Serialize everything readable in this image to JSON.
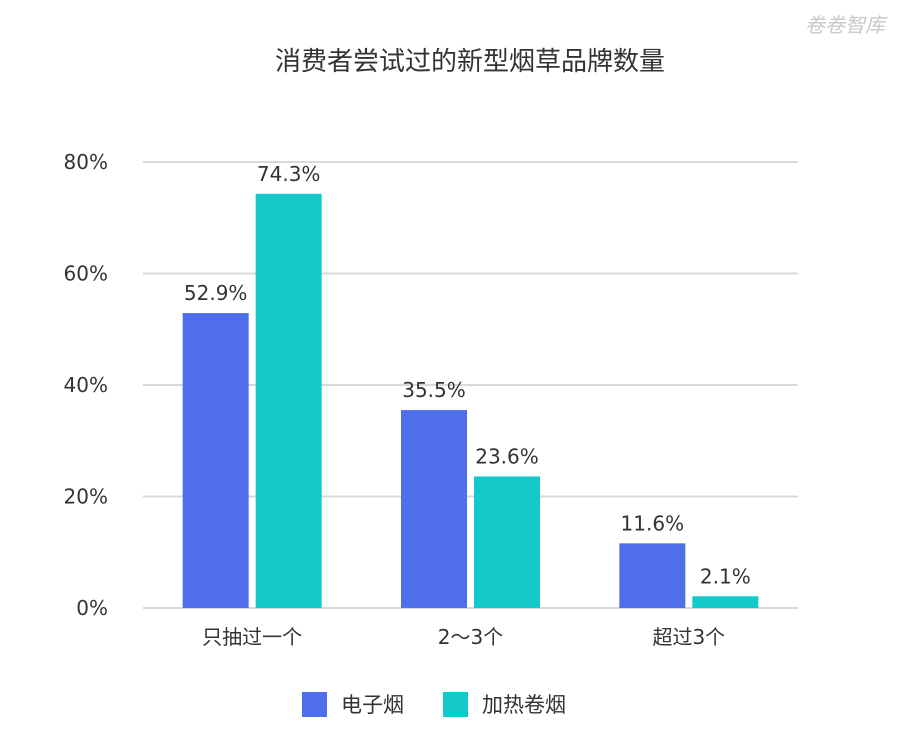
{
  "watermark": "卷卷智库",
  "chart_data": {
    "type": "bar",
    "title": "消费者尝试过的新型烟草品牌数量",
    "xlabel": "",
    "ylabel": "",
    "categories": [
      "只抽过一个",
      "2～3个",
      "超过3个"
    ],
    "ylim": [
      0,
      80
    ],
    "yticks": [
      0,
      20,
      40,
      60,
      80
    ],
    "ytick_labels": [
      "0%",
      "20%",
      "40%",
      "60%",
      "80%"
    ],
    "grid": true,
    "legend_position": "bottom",
    "series": [
      {
        "name": "电子烟",
        "color": "#4f6fea",
        "values": [
          52.9,
          35.5,
          11.6
        ],
        "labels": [
          "52.9%",
          "35.5%",
          "11.6%"
        ]
      },
      {
        "name": "加热卷烟",
        "color": "#14c9c9",
        "values": [
          74.3,
          23.6,
          2.1
        ],
        "labels": [
          "74.3%",
          "23.6%",
          "2.1%"
        ]
      }
    ]
  }
}
